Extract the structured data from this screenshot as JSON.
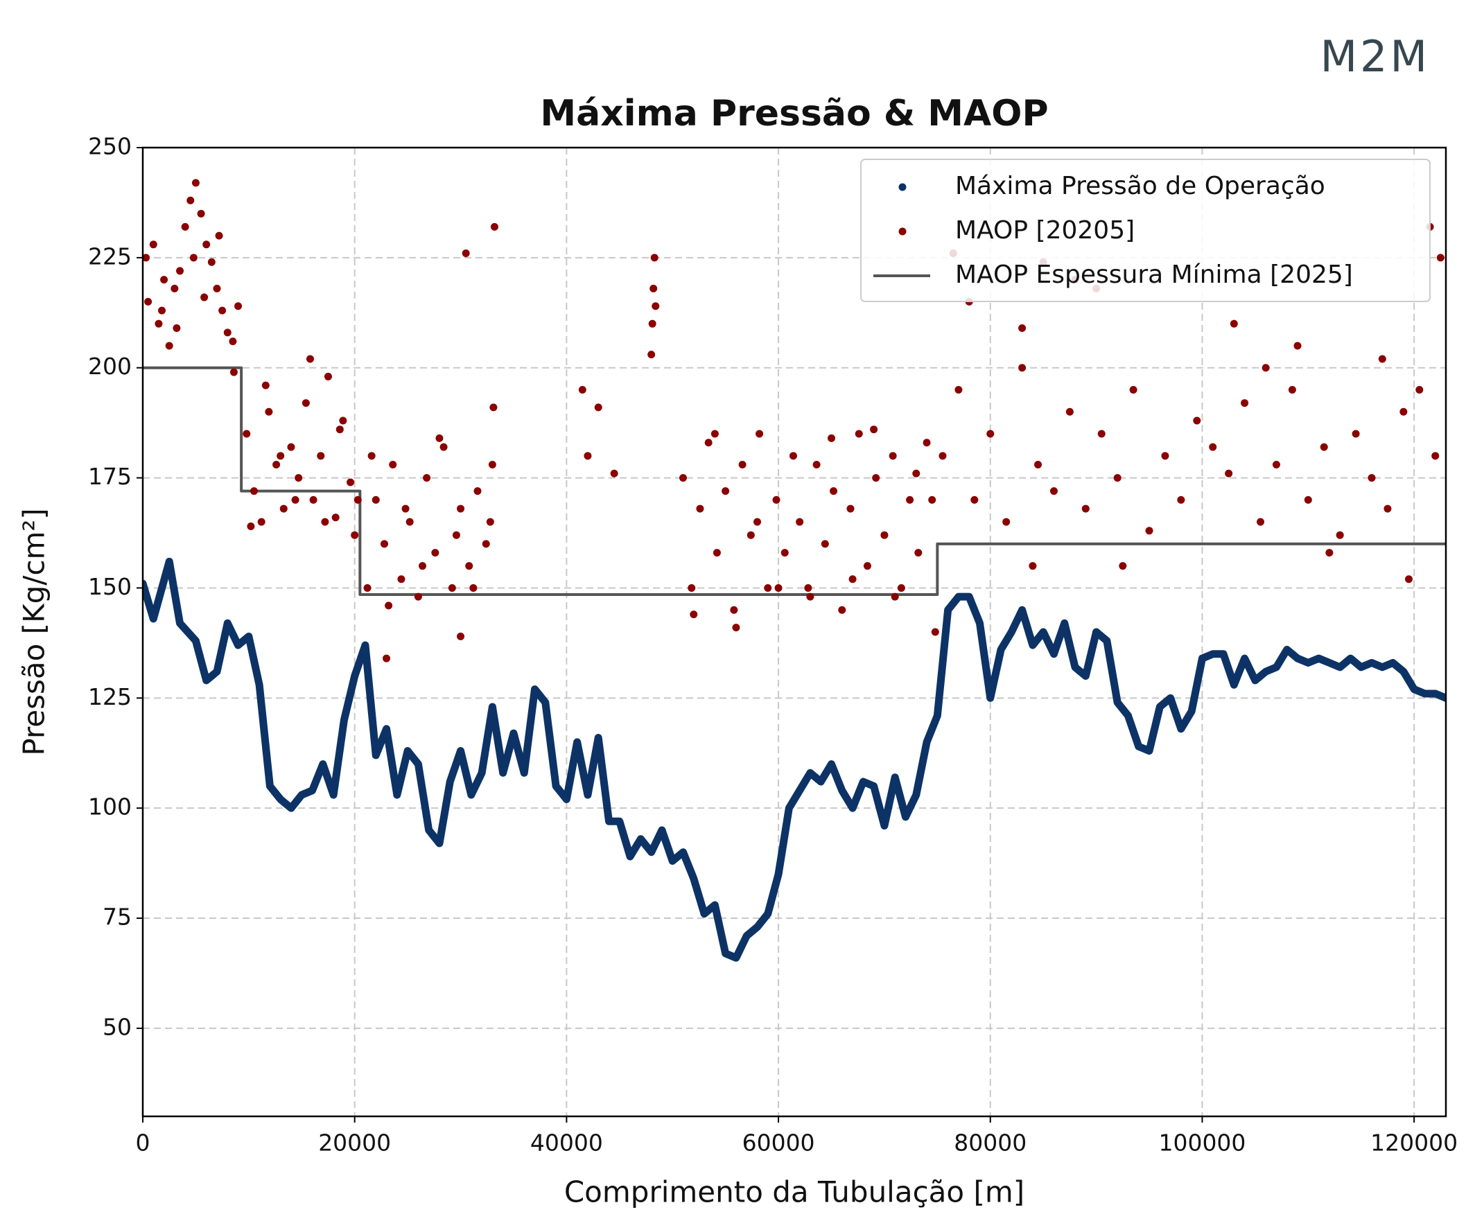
{
  "logo": "M2M",
  "chart_data": {
    "type": "scatter",
    "title": "Máxima Pressão & MAOP",
    "x_label": "Comprimento da Tubulação [m]",
    "y_label": "Pressão [Kg/cm²]",
    "xlim": [
      0,
      123000
    ],
    "ylim": [
      30,
      250
    ],
    "xticks": [
      0,
      20000,
      40000,
      60000,
      80000,
      100000,
      120000
    ],
    "yticks": [
      50,
      75,
      100,
      125,
      150,
      175,
      200,
      225,
      250
    ],
    "grid": true,
    "legend": "upper right",
    "series": [
      {
        "name": "Máxima Pressão de Operação",
        "color": "#0d3366",
        "kind": "scatter",
        "x": [
          0,
          1000,
          2500,
          3500,
          5000,
          6000,
          7000,
          8000,
          9000,
          10000,
          11000,
          12000,
          13000,
          14000,
          15000,
          16000,
          17000,
          18000,
          19000,
          20000,
          21000,
          22000,
          23000,
          24000,
          25000,
          26000,
          27000,
          28000,
          29000,
          30000,
          31000,
          32000,
          33000,
          34000,
          35000,
          36000,
          37000,
          38000,
          39000,
          40000,
          41000,
          42000,
          43000,
          44000,
          45000,
          46000,
          47000,
          48000,
          49000,
          50000,
          51000,
          52000,
          53000,
          54000,
          55000,
          56000,
          57000,
          58000,
          59000,
          60000,
          61000,
          62000,
          63000,
          64000,
          65000,
          66000,
          67000,
          68000,
          69000,
          70000,
          71000,
          72000,
          73000,
          74000,
          75000,
          76000,
          77000,
          78000,
          79000,
          80000,
          81000,
          82000,
          83000,
          84000,
          85000,
          86000,
          87000,
          88000,
          89000,
          90000,
          91000,
          92000,
          93000,
          94000,
          95000,
          96000,
          97000,
          98000,
          99000,
          100000,
          101000,
          102000,
          103000,
          104000,
          105000,
          106000,
          107000,
          108000,
          109000,
          110000,
          111000,
          112000,
          113000,
          114000,
          115000,
          116000,
          117000,
          118000,
          119000,
          120000,
          121000,
          122000,
          123000
        ],
        "values": [
          151,
          143,
          156,
          142,
          138,
          129,
          131,
          142,
          137,
          139,
          128,
          105,
          102,
          100,
          103,
          104,
          110,
          103,
          120,
          130,
          137,
          112,
          118,
          103,
          113,
          110,
          95,
          92,
          106,
          113,
          103,
          108,
          123,
          108,
          117,
          108,
          127,
          124,
          105,
          102,
          115,
          103,
          116,
          97,
          97,
          89,
          93,
          90,
          95,
          88,
          90,
          84,
          76,
          78,
          67,
          66,
          71,
          73,
          76,
          85,
          100,
          104,
          108,
          106,
          110,
          104,
          100,
          106,
          105,
          96,
          107,
          98,
          103,
          115,
          121,
          145,
          148,
          148,
          142,
          125,
          136,
          140,
          145,
          137,
          140,
          135,
          142,
          132,
          130,
          140,
          138,
          124,
          121,
          114,
          113,
          123,
          125,
          118,
          122,
          134,
          135,
          135,
          128,
          134,
          129,
          131,
          132,
          136,
          134,
          133,
          134,
          133,
          132,
          134,
          132,
          133,
          132,
          133,
          131,
          127,
          126,
          126,
          125
        ]
      },
      {
        "name": "MAOP [20205]",
        "color": "#8b0000",
        "kind": "scatter",
        "x": [
          500,
          1000,
          1500,
          2000,
          2500,
          3000,
          3500,
          4000,
          4500,
          5000,
          5500,
          6000,
          6500,
          7000,
          7500,
          8000,
          8500,
          9000,
          300,
          1800,
          3200,
          4800,
          5800,
          7200,
          8600,
          9800,
          10500,
          11200,
          11900,
          12600,
          13300,
          14000,
          14700,
          15400,
          16100,
          16800,
          17500,
          18200,
          18900,
          19600,
          20300,
          10200,
          11600,
          13000,
          14400,
          15800,
          17200,
          18600,
          20000,
          21200,
          22000,
          22800,
          23600,
          24400,
          25200,
          26000,
          26800,
          27600,
          28400,
          29200,
          30000,
          30800,
          31600,
          32400,
          33000,
          21600,
          23200,
          24800,
          26400,
          28000,
          29600,
          31200,
          32800,
          30500,
          33200,
          41500,
          43000,
          42000,
          44500,
          48000,
          48100,
          48200,
          48300,
          48400,
          23000,
          30000,
          33100,
          51000,
          51800,
          52600,
          53400,
          54200,
          55000,
          55800,
          56600,
          57400,
          58200,
          59000,
          59800,
          60600,
          61400,
          52000,
          54000,
          56000,
          58000,
          60000,
          62000,
          62800,
          63600,
          64400,
          65200,
          66000,
          66800,
          67600,
          68400,
          69200,
          70000,
          70800,
          71600,
          72400,
          73200,
          74000,
          74800,
          63000,
          65000,
          67000,
          69000,
          71000,
          73000,
          74500,
          75500,
          77000,
          78500,
          80000,
          81500,
          83000,
          84500,
          86000,
          87500,
          89000,
          90500,
          92000,
          93500,
          95000,
          96500,
          98000,
          99500,
          101000,
          102500,
          104000,
          105500,
          107000,
          108500,
          110000,
          111500,
          113000,
          114500,
          116000,
          117500,
          119000,
          120500,
          122000,
          76500,
          78000,
          83000,
          85000,
          88000,
          90000,
          103000,
          106000,
          109000,
          117000,
          121500,
          122500,
          119500,
          92500,
          84000,
          112000
        ],
        "values": [
          215,
          228,
          210,
          220,
          205,
          218,
          222,
          232,
          238,
          242,
          235,
          228,
          224,
          218,
          213,
          208,
          206,
          214,
          225,
          213,
          209,
          225,
          216,
          230,
          199,
          185,
          172,
          165,
          190,
          178,
          168,
          182,
          175,
          192,
          170,
          180,
          198,
          166,
          188,
          174,
          170,
          164,
          196,
          180,
          170,
          202,
          165,
          186,
          162,
          150,
          170,
          160,
          178,
          152,
          165,
          148,
          175,
          158,
          182,
          150,
          168,
          155,
          172,
          160,
          178,
          180,
          146,
          168,
          155,
          184,
          162,
          150,
          165,
          226,
          232,
          195,
          191,
          180,
          176,
          203,
          210,
          218,
          225,
          214,
          134,
          139,
          191,
          175,
          150,
          168,
          183,
          158,
          172,
          145,
          178,
          162,
          185,
          150,
          170,
          158,
          180,
          144,
          185,
          141,
          165,
          150,
          165,
          150,
          178,
          160,
          172,
          145,
          168,
          185,
          155,
          175,
          162,
          180,
          150,
          170,
          158,
          183,
          140,
          148,
          184,
          152,
          186,
          148,
          176,
          170,
          180,
          195,
          170,
          185,
          165,
          200,
          178,
          172,
          190,
          168,
          185,
          175,
          195,
          163,
          180,
          170,
          188,
          182,
          176,
          192,
          165,
          178,
          195,
          170,
          182,
          162,
          185,
          175,
          168,
          190,
          195,
          180,
          226,
          215,
          209,
          224,
          220,
          218,
          210,
          200,
          205,
          202,
          232,
          225,
          152,
          155,
          155,
          158
        ]
      },
      {
        "name": "MAOP Espessura Mínima [2025]",
        "color": "#555555",
        "kind": "line",
        "x": [
          0,
          9300,
          9300,
          20500,
          20500,
          75000,
          75000,
          123000
        ],
        "values": [
          200,
          200,
          172,
          172,
          148.5,
          148.5,
          160,
          160
        ]
      }
    ]
  }
}
